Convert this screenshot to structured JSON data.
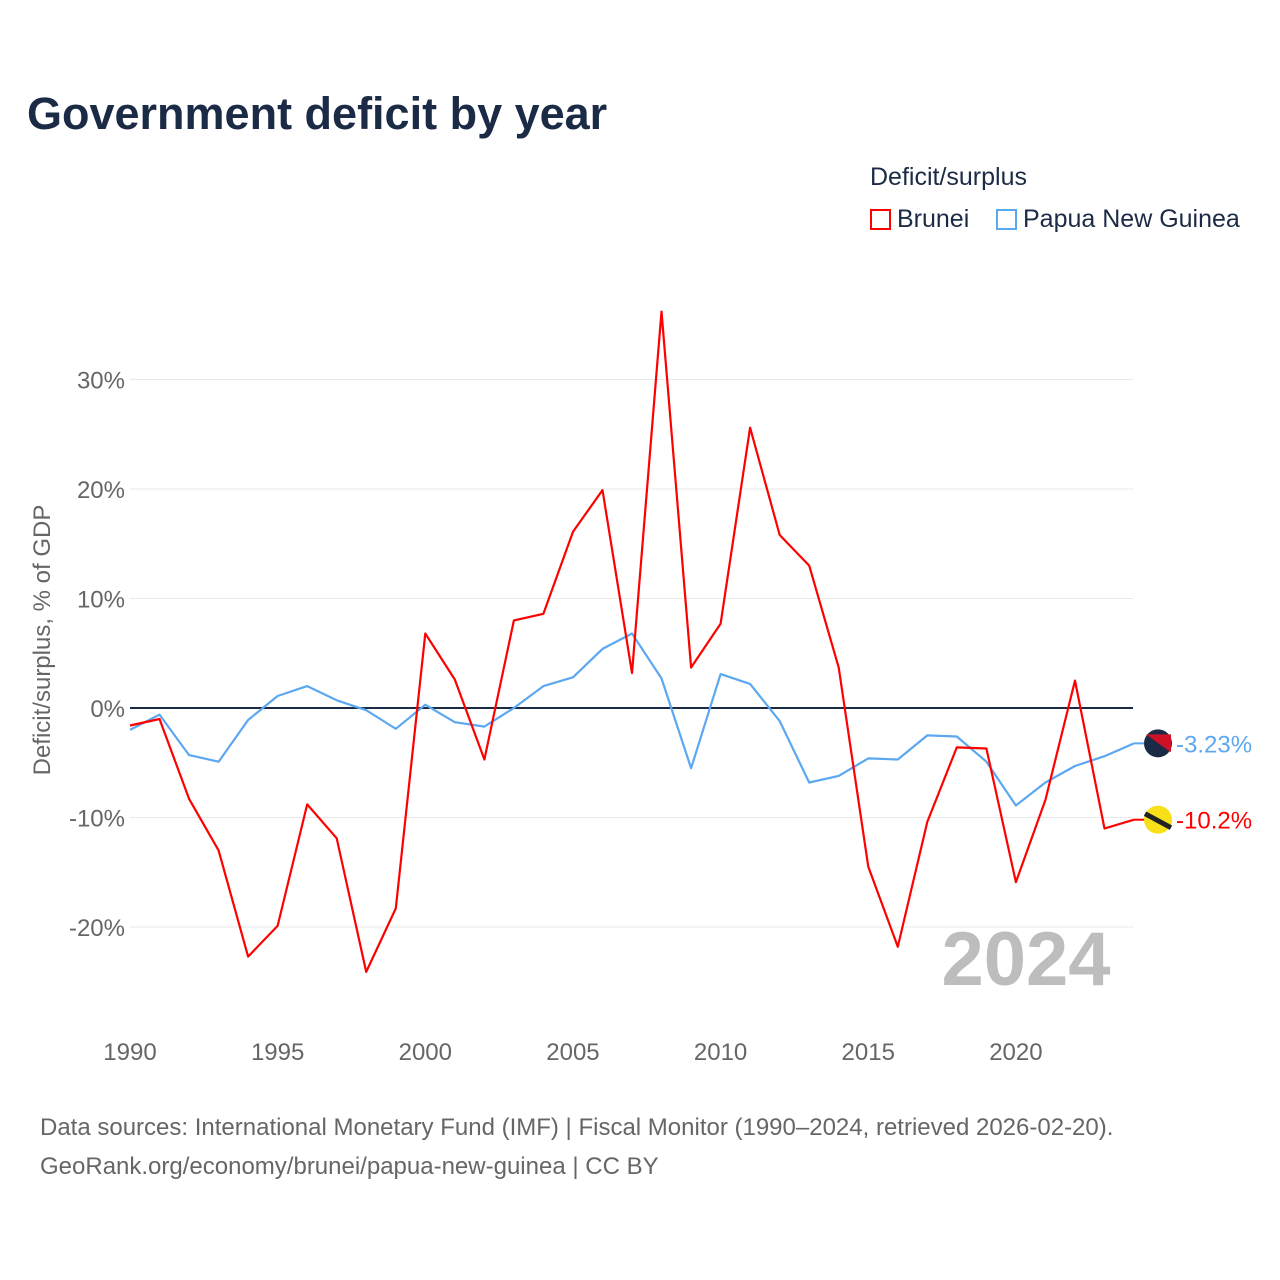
{
  "title": "Government deficit by year",
  "legend": {
    "title": "Deficit/surplus",
    "items": [
      {
        "label": "Brunei",
        "color": "#ff0000"
      },
      {
        "label": "Papua New Guinea",
        "color": "#5ca8f0"
      }
    ]
  },
  "footer": {
    "line1": "Data sources: International Monetary Fund (IMF) | Fiscal Monitor (1990–2024, retrieved 2026-02-20).",
    "line2": "GeoRank.org/economy/brunei/papua-new-guinea | CC BY"
  },
  "chart_data": {
    "type": "line",
    "title": "Government deficit by year",
    "xlabel": "",
    "ylabel": "Deficit/surplus, % of GDP",
    "xlim": [
      1990,
      2024
    ],
    "ylim": [
      -28,
      36.5
    ],
    "x_ticks": [
      1990,
      1995,
      2000,
      2005,
      2010,
      2015,
      2020
    ],
    "y_ticks": [
      {
        "v": 30,
        "label": "30%"
      },
      {
        "v": 20,
        "label": "20%"
      },
      {
        "v": 10,
        "label": "10%"
      },
      {
        "v": 0,
        "label": "0%"
      },
      {
        "v": -10,
        "label": "-10%"
      },
      {
        "v": -20,
        "label": "-20%"
      }
    ],
    "year_watermark": "2024",
    "x": [
      1990,
      1991,
      1992,
      1993,
      1994,
      1995,
      1996,
      1997,
      1998,
      1999,
      2000,
      2001,
      2002,
      2003,
      2004,
      2005,
      2006,
      2007,
      2008,
      2009,
      2010,
      2011,
      2012,
      2013,
      2014,
      2015,
      2016,
      2017,
      2018,
      2019,
      2020,
      2021,
      2022,
      2023,
      2024
    ],
    "series": [
      {
        "name": "Brunei",
        "color": "#ff0000",
        "end_label": "-10.2%",
        "values": [
          -1.6,
          -1.0,
          -8.3,
          -13.0,
          -22.7,
          -19.9,
          -8.8,
          -11.9,
          -24.1,
          -18.3,
          6.8,
          2.6,
          -4.7,
          8.0,
          8.6,
          16.1,
          19.9,
          3.2,
          36.2,
          3.7,
          7.7,
          25.6,
          15.8,
          13.0,
          3.7,
          -14.5,
          -21.8,
          -10.4,
          -3.6,
          -3.7,
          -15.9,
          -8.4,
          2.5,
          -11.0,
          -10.2
        ]
      },
      {
        "name": "Papua New Guinea",
        "color": "#5ca8f0",
        "end_label": "-3.23%",
        "values": [
          -2.0,
          -0.6,
          -4.3,
          -4.9,
          -1.1,
          1.1,
          2.0,
          0.7,
          -0.2,
          -1.9,
          0.3,
          -1.3,
          -1.7,
          0.0,
          2.0,
          2.8,
          5.4,
          6.8,
          2.7,
          -5.5,
          3.1,
          2.2,
          -1.2,
          -6.8,
          -6.2,
          -4.6,
          -4.7,
          -2.5,
          -2.6,
          -4.9,
          -8.9,
          -6.8,
          -5.3,
          -4.4,
          -3.23
        ]
      }
    ]
  }
}
